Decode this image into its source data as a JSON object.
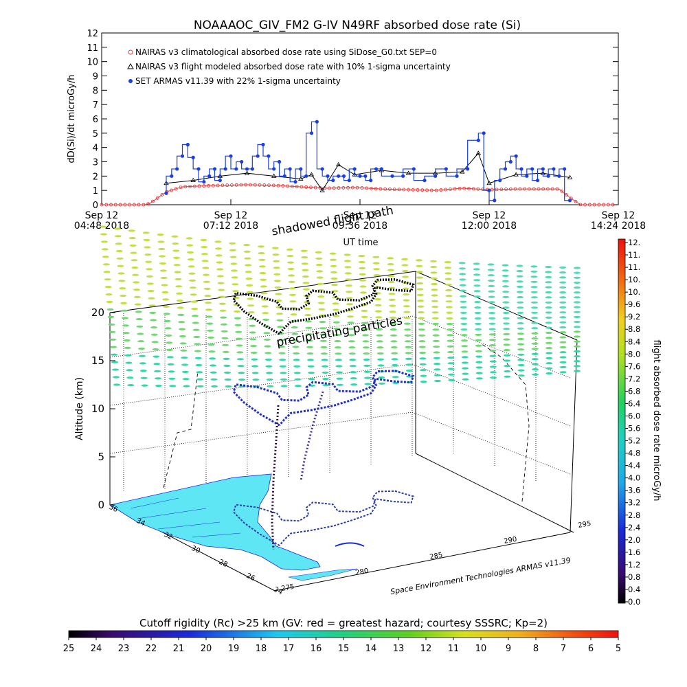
{
  "title": "NOAAAOC_GIV_FM2 G-IV    N49RF  absorbed dose rate (Si)",
  "chart_data": [
    {
      "type": "line",
      "ylabel": "dD(Si)/dt microGy/h",
      "xlabel": "UT time",
      "ylim": [
        0,
        12
      ],
      "yticks": [
        "0",
        "1",
        "2",
        "3",
        "4",
        "5",
        "6",
        "7",
        "8",
        "9",
        "10",
        "11",
        "12"
      ],
      "xticks": [
        {
          "line1": "Sep 12",
          "line2": "04:48 2018"
        },
        {
          "line1": "Sep 12",
          "line2": "07:12 2018"
        },
        {
          "line1": "Sep 12",
          "line2": "09:36 2018"
        },
        {
          "line1": "Sep 12",
          "line2": "12:00 2018"
        },
        {
          "line1": "Sep 12",
          "line2": "14:24 2018"
        }
      ],
      "xlim_hours": [
        4.8,
        14.4
      ],
      "legend_position": "top-left",
      "series": [
        {
          "name": "NAIRAS v3 climatological absorbed dose rate using SiDose_G0.txt SEP=0",
          "color": "#e03a3a",
          "marker": "circle-open",
          "x": [
            4.8,
            5.6,
            5.7,
            6.0,
            6.3,
            6.6,
            7.0,
            7.5,
            8.0,
            8.5,
            9.0,
            9.5,
            10.0,
            10.5,
            11.0,
            11.5,
            12.0,
            12.5,
            13.0,
            13.3,
            13.5,
            13.7,
            14.3
          ],
          "y": [
            0,
            0,
            0.1,
            0.9,
            1.25,
            1.3,
            1.35,
            1.4,
            1.35,
            1.25,
            1.15,
            1.2,
            1.1,
            1.05,
            1.0,
            1.15,
            1.05,
            1.1,
            1.1,
            1.1,
            0.5,
            0,
            0
          ]
        },
        {
          "name": "NAIRAS v3 flight modeled absorbed dose rate with 10% 1-sigma uncertainty",
          "color": "#000000",
          "marker": "triangle",
          "x": [
            6.0,
            6.5,
            7.0,
            7.5,
            8.0,
            8.5,
            8.7,
            8.9,
            9.2,
            9.5,
            10.0,
            10.5,
            11.0,
            11.5,
            11.8,
            12.0,
            12.5,
            13.0,
            13.5
          ],
          "y": [
            1.5,
            1.7,
            2.0,
            2.2,
            2.0,
            1.8,
            2.1,
            1.0,
            2.8,
            2.1,
            2.4,
            2.2,
            2.2,
            2.3,
            3.6,
            1.5,
            2.1,
            2.2,
            1.9
          ]
        },
        {
          "name": "SET ARMAS v11.39 with 22% 1-sigma uncertainty",
          "color": "#1a3fe0",
          "marker": "circle-filled",
          "x": [
            6.0,
            6.1,
            6.2,
            6.3,
            6.4,
            6.5,
            6.6,
            6.7,
            6.8,
            6.9,
            7.0,
            7.1,
            7.2,
            7.3,
            7.4,
            7.5,
            7.6,
            7.7,
            7.8,
            7.9,
            8.0,
            8.1,
            8.2,
            8.3,
            8.4,
            8.5,
            8.6,
            8.7,
            8.8,
            8.9,
            9.0,
            9.1,
            9.2,
            9.3,
            9.4,
            9.5,
            9.6,
            9.7,
            9.8,
            9.9,
            10.0,
            10.2,
            10.4,
            10.6,
            10.8,
            11.0,
            11.2,
            11.4,
            11.6,
            11.8,
            11.9,
            12.0,
            12.1,
            12.2,
            12.3,
            12.4,
            12.5,
            12.6,
            12.7,
            12.8,
            12.9,
            13.0,
            13.1,
            13.2,
            13.3,
            13.4,
            13.5
          ],
          "y": [
            0.8,
            2.0,
            2.5,
            3.4,
            4.2,
            3.3,
            2.5,
            1.6,
            2.0,
            2.5,
            1.7,
            2.5,
            3.4,
            2.5,
            3.0,
            2.5,
            2.5,
            3.4,
            4.2,
            3.4,
            2.5,
            3.0,
            2.0,
            2.5,
            1.6,
            2.5,
            2.0,
            5.0,
            5.8,
            2.5,
            2.0,
            1.7,
            2.0,
            2.0,
            1.7,
            2.5,
            2.0,
            2.0,
            1.7,
            2.5,
            2.5,
            2.0,
            2.0,
            2.5,
            1.7,
            2.0,
            2.5,
            2.0,
            2.5,
            4.5,
            5.0,
            1.0,
            0.3,
            1.7,
            2.5,
            3.0,
            3.4,
            2.5,
            2.0,
            2.5,
            1.7,
            2.5,
            2.0,
            2.5,
            2.0,
            2.5,
            0.3
          ]
        }
      ]
    },
    {
      "type": "scatter",
      "axes": {
        "z_label": "Altitude (km)",
        "z_ticks": [
          "0",
          "5",
          "10",
          "15",
          "20"
        ],
        "lat_ticks": [
          "36",
          "34",
          "32",
          "30",
          "28",
          "26",
          "24"
        ],
        "lon_ticks": [
          "275",
          "280",
          "285",
          "290",
          "295"
        ]
      },
      "annotations": {
        "top_label": "shadowed flight path",
        "layer_label": "precipitating particles",
        "credit": "Space Environment Technologies ARMAS v11.39"
      },
      "flight_track_lonlat": [
        [
          279.5,
          28.5
        ],
        [
          279.6,
          30.0
        ],
        [
          279.9,
          31.5
        ],
        [
          280.4,
          32.8
        ],
        [
          281.2,
          33.5
        ],
        [
          282.0,
          32.8
        ],
        [
          282.4,
          31.8
        ],
        [
          282.0,
          31.0
        ],
        [
          282.8,
          30.6
        ],
        [
          283.8,
          31.0
        ],
        [
          284.4,
          31.8
        ],
        [
          285.2,
          32.2
        ],
        [
          286.0,
          31.6
        ],
        [
          285.6,
          30.8
        ],
        [
          286.6,
          30.3
        ],
        [
          287.8,
          30.6
        ],
        [
          288.6,
          31.3
        ],
        [
          289.2,
          30.7
        ],
        [
          290.0,
          30.2
        ],
        [
          290.7,
          30.8
        ],
        [
          290.3,
          31.7
        ],
        [
          289.4,
          32.0
        ],
        [
          288.6,
          31.5
        ],
        [
          288.0,
          30.6
        ],
        [
          287.0,
          29.9
        ],
        [
          285.4,
          29.6
        ],
        [
          284.0,
          29.4
        ],
        [
          282.5,
          29.4
        ],
        [
          281.2,
          29.5
        ],
        [
          280.3,
          29.0
        ],
        [
          279.5,
          28.5
        ]
      ],
      "colorbar_right": {
        "label": "flight absorbed dose rate microGy/h",
        "ticks": [
          "0.0",
          "0.4",
          "0.8",
          "1.2",
          "1.6",
          "2.0",
          "2.4",
          "2.8",
          "3.2",
          "3.6",
          "4.0",
          "4.4",
          "4.8",
          "5.2",
          "5.6",
          "6.0",
          "6.4",
          "6.8",
          "7.2",
          "7.6",
          "8.0",
          "8.4",
          "8.8",
          "9.2",
          "9.6",
          "10.",
          "10.",
          "11.",
          "11.",
          "12."
        ]
      },
      "colorbar_bottom": {
        "label": "Cutoff rigidity (Rc) >25 km (GV: red = greatest hazard; courtesy SSSRC; Kp=2)",
        "ticks": [
          "25",
          "24",
          "23",
          "22",
          "21",
          "20",
          "19",
          "18",
          "17",
          "16",
          "15",
          "14",
          "13",
          "12",
          "11",
          "10",
          "9",
          "8",
          "7",
          "6",
          "5"
        ]
      }
    }
  ]
}
